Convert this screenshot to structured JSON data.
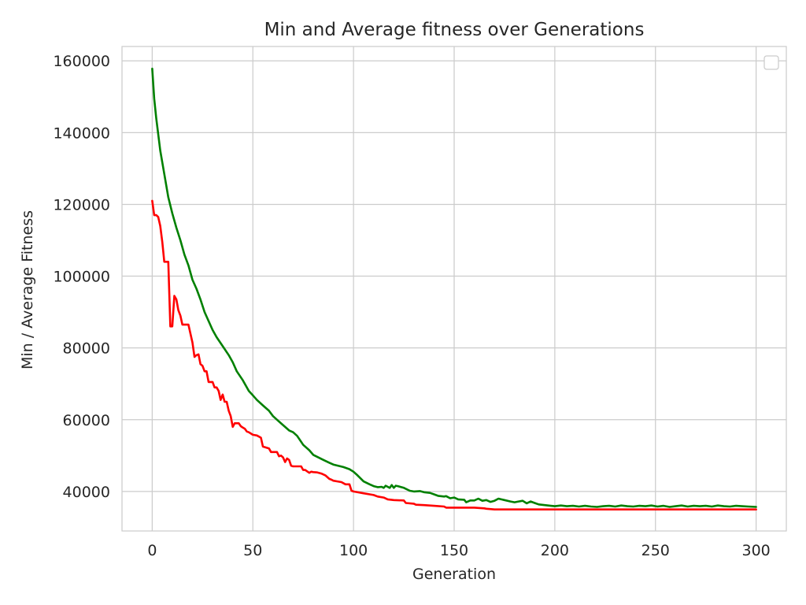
{
  "chart_data": {
    "type": "line",
    "title": "Min and Average fitness over Generations",
    "xlabel": "Generation",
    "ylabel": "Min / Average Fitness",
    "xlim": [
      -15,
      315
    ],
    "ylim": [
      29000,
      164000
    ],
    "x_ticks": [
      0,
      50,
      100,
      150,
      200,
      250,
      300
    ],
    "y_ticks": [
      40000,
      60000,
      80000,
      100000,
      120000,
      140000,
      160000
    ],
    "x_tick_labels": [
      "0",
      "50",
      "100",
      "150",
      "200",
      "250",
      "300"
    ],
    "y_tick_labels": [
      "40000",
      "60000",
      "80000",
      "100000",
      "120000",
      "140000",
      "160000"
    ],
    "grid": true,
    "legend": {
      "placement": "top-right",
      "entries": []
    },
    "series": [
      {
        "color": "#ff0000",
        "x": [
          0,
          1,
          2,
          3,
          4,
          5,
          6,
          7,
          8,
          9,
          10,
          11,
          12,
          13,
          14,
          15,
          16,
          17,
          18,
          20,
          21,
          22,
          23,
          24,
          25,
          26,
          27,
          28,
          29,
          30,
          31,
          32,
          33,
          34,
          35,
          36,
          37,
          38,
          39,
          40,
          41,
          42,
          43,
          44,
          45,
          46,
          47,
          48,
          50,
          52,
          54,
          55,
          58,
          59,
          62,
          63,
          64,
          65,
          66,
          67,
          68,
          69,
          70,
          74,
          75,
          76,
          78,
          79,
          80,
          82,
          84,
          86,
          88,
          89,
          90,
          92,
          94,
          96,
          98,
          99,
          100,
          105,
          110,
          112,
          115,
          117,
          120,
          125,
          126,
          130,
          131,
          135,
          140,
          145,
          146,
          150,
          155,
          160,
          165,
          166,
          170,
          180,
          200,
          300
        ],
        "y": [
          121000,
          117000,
          117000,
          116500,
          114000,
          109500,
          104000,
          104000,
          104000,
          86000,
          86000,
          94500,
          93500,
          90500,
          89000,
          86500,
          86500,
          86500,
          86500,
          81500,
          77500,
          78000,
          78200,
          75500,
          75000,
          73500,
          73500,
          70500,
          70500,
          70500,
          69000,
          69000,
          68000,
          65500,
          67000,
          65000,
          65000,
          62500,
          61000,
          58000,
          59000,
          59000,
          59000,
          58200,
          57800,
          57500,
          56700,
          56500,
          55800,
          55600,
          55000,
          52500,
          52000,
          51000,
          51000,
          49800,
          50000,
          49500,
          48200,
          49200,
          48800,
          47200,
          47000,
          47000,
          46000,
          46000,
          45200,
          45500,
          45400,
          45300,
          45000,
          44500,
          43500,
          43300,
          43000,
          42800,
          42600,
          42000,
          42000,
          40200,
          40000,
          39500,
          39000,
          38600,
          38300,
          37800,
          37600,
          37500,
          36800,
          36600,
          36300,
          36200,
          36000,
          35800,
          35500,
          35500,
          35500,
          35500,
          35300,
          35200,
          35000,
          35000,
          35000,
          35000
        ]
      },
      {
        "color": "#008000",
        "x": [
          0,
          1,
          2,
          4,
          6,
          8,
          10,
          12,
          14,
          16,
          18,
          20,
          22,
          24,
          26,
          28,
          30,
          32,
          35,
          38,
          40,
          42,
          45,
          48,
          50,
          52,
          55,
          58,
          60,
          62,
          65,
          68,
          70,
          72,
          75,
          78,
          80,
          85,
          88,
          90,
          95,
          98,
          100,
          102,
          105,
          108,
          110,
          112,
          114,
          115,
          116,
          118,
          119,
          120,
          121,
          122,
          125,
          128,
          130,
          133,
          135,
          138,
          140,
          142,
          145,
          146,
          148,
          150,
          152,
          155,
          156,
          158,
          160,
          162,
          164,
          166,
          168,
          170,
          172,
          175,
          178,
          180,
          182,
          184,
          186,
          188,
          190,
          192,
          195,
          198,
          200,
          203,
          206,
          209,
          212,
          215,
          218,
          221,
          224,
          227,
          230,
          233,
          236,
          239,
          242,
          245,
          248,
          251,
          254,
          257,
          260,
          263,
          266,
          269,
          272,
          275,
          278,
          281,
          284,
          287,
          290,
          293,
          296,
          300
        ],
        "y": [
          157800,
          149500,
          144000,
          135000,
          128500,
          122000,
          117500,
          113500,
          110000,
          106000,
          103000,
          99000,
          96500,
          93500,
          90000,
          87500,
          85000,
          83000,
          80500,
          78000,
          76000,
          73500,
          71000,
          68000,
          66800,
          65500,
          64000,
          62500,
          61000,
          60000,
          58500,
          57000,
          56500,
          55500,
          53000,
          51500,
          50200,
          48800,
          48000,
          47500,
          46800,
          46200,
          45500,
          44500,
          42800,
          42000,
          41500,
          41200,
          41300,
          41000,
          41600,
          41000,
          41800,
          41000,
          41600,
          41500,
          41000,
          40200,
          40000,
          40100,
          39800,
          39600,
          39200,
          38800,
          38600,
          38700,
          38100,
          38300,
          37800,
          37700,
          37000,
          37500,
          37500,
          38000,
          37400,
          37600,
          37100,
          37400,
          38000,
          37600,
          37200,
          37000,
          37200,
          37400,
          36700,
          37200,
          36800,
          36400,
          36200,
          36000,
          35900,
          36100,
          35900,
          36000,
          35800,
          36000,
          35800,
          35700,
          35900,
          36000,
          35800,
          36100,
          35900,
          35800,
          36000,
          35900,
          36100,
          35800,
          36000,
          35700,
          35900,
          36100,
          35800,
          36000,
          35900,
          36000,
          35800,
          36100,
          35900,
          35800,
          36000,
          35900,
          35800,
          35700
        ]
      }
    ]
  }
}
